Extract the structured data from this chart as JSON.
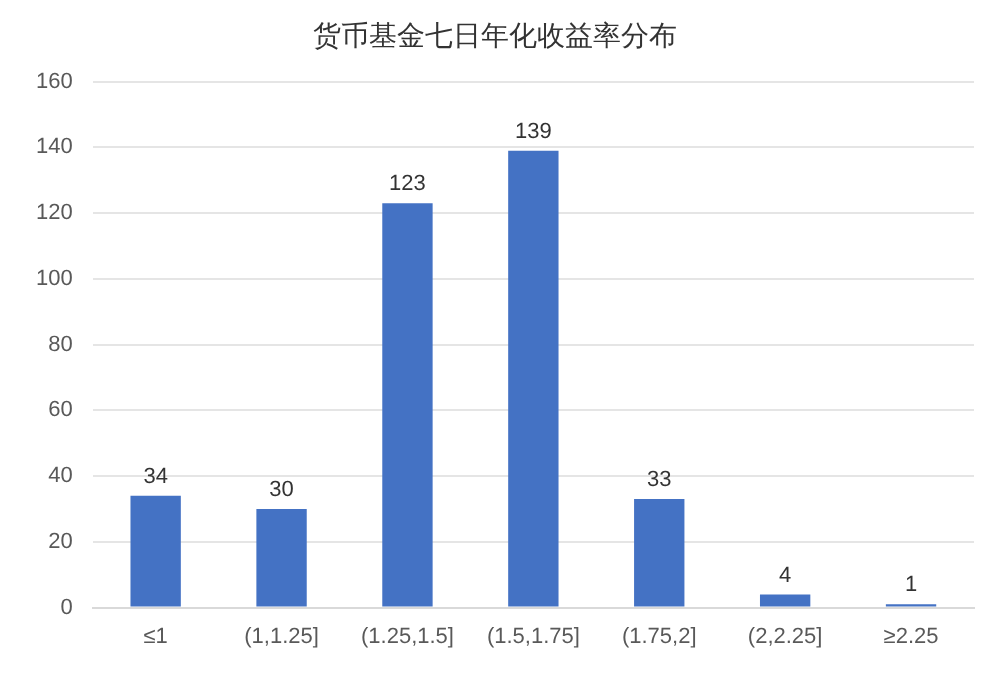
{
  "chart_data": {
    "type": "bar",
    "title": "货币基金七日年化收益率分布",
    "categories": [
      "≤1",
      "(1,1.25]",
      "(1.25,1.5]",
      "(1.5,1.75]",
      "(1.75,2]",
      "(2,2.25]",
      "≥2.25"
    ],
    "values": [
      34,
      30,
      123,
      139,
      33,
      4,
      1
    ],
    "color": "#4472c4",
    "ylim": [
      0,
      160
    ],
    "yticks": [
      0,
      20,
      40,
      60,
      80,
      100,
      120,
      140,
      160
    ],
    "grid": "y",
    "data_labels": true
  }
}
